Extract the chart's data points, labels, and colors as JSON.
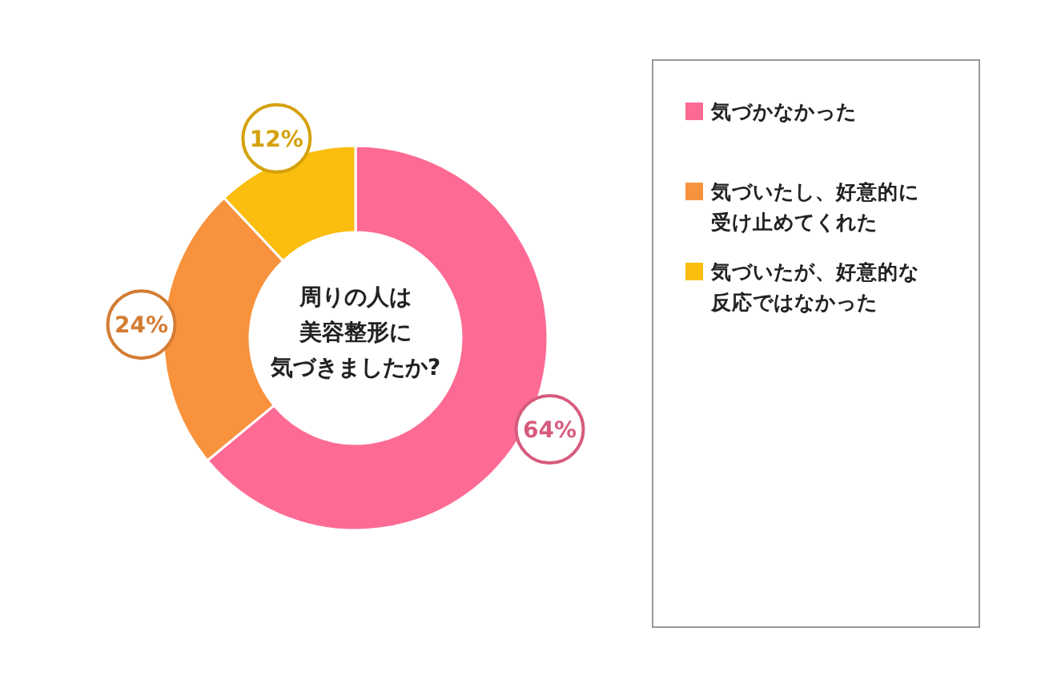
{
  "chart_data": {
    "type": "donut",
    "title": "周りの人は美容整形に気づきましたか?",
    "categories": [
      "気づかなかった",
      "気づいたし、好意的に受け止めてくれた",
      "気づいたが、好意的な反応ではなかった"
    ],
    "values": [
      64,
      24,
      12
    ],
    "value_labels": [
      "64%",
      "24%",
      "12%"
    ],
    "colors": [
      "#fd6b94",
      "#f8923c",
      "#fbbd0e"
    ],
    "legend": "right"
  }
}
